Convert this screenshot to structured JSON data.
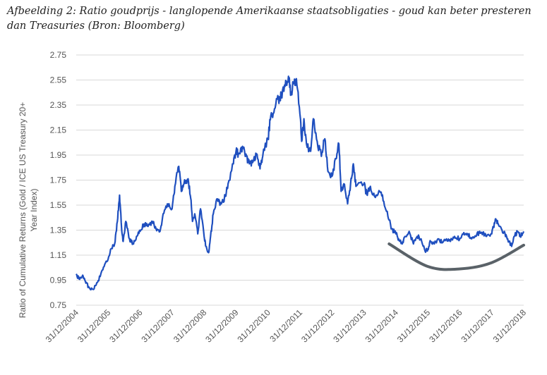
{
  "caption": {
    "line1": "Afbeelding 2: Ratio goudprijs - langlopende Amerikaanse staatsobligaties - goud kan beter presteren",
    "line2": "dan Treasuries (Bron: Bloomberg)"
  },
  "chart_data": {
    "type": "line",
    "title": "Afbeelding 2: Ratio goudprijs - langlopende Amerikaanse staatsobligaties - goud kan beter presteren dan Treasuries (Bron: Bloomberg)",
    "ylabel_line1": "Ratio of Cumulative Returns (Gold / ICE US Treasury 20+",
    "ylabel_line2": "Year Index)",
    "xlabel": "",
    "ylim": [
      0.75,
      2.75
    ],
    "xlim": [
      "31/12/2004",
      "31/12/2018"
    ],
    "yticks": [
      "2.75",
      "2.55",
      "2.35",
      "2.15",
      "1.95",
      "1.75",
      "1.55",
      "1.35",
      "1.15",
      "0.95",
      "0.75"
    ],
    "xticks": [
      "31/12/2004",
      "31/12/2005",
      "31/12/2006",
      "31/12/2007",
      "31/12/2008",
      "31/12/2009",
      "31/12/2010",
      "31/12/2011",
      "31/12/2012",
      "31/12/2013",
      "31/12/2014",
      "31/12/2015",
      "31/12/2016",
      "31/12/2017",
      "31/12/2018"
    ],
    "grid": true,
    "line_color": "#1f4fbf",
    "annotation_color": "#5a6268",
    "series": [
      {
        "points": [
          [
            "2004-12-31",
            1.0
          ],
          [
            "2005-02-01",
            0.96
          ],
          [
            "2005-03-15",
            0.99
          ],
          [
            "2005-04-15",
            0.94
          ],
          [
            "2005-05-20",
            0.9
          ],
          [
            "2005-07-01",
            0.88
          ],
          [
            "2005-08-15",
            0.91
          ],
          [
            "2005-10-01",
            0.98
          ],
          [
            "2005-11-15",
            1.06
          ],
          [
            "2005-12-31",
            1.12
          ],
          [
            "2006-02-01",
            1.2
          ],
          [
            "2006-03-15",
            1.24
          ],
          [
            "2006-04-15",
            1.42
          ],
          [
            "2006-05-10",
            1.63
          ],
          [
            "2006-06-01",
            1.38
          ],
          [
            "2006-06-20",
            1.26
          ],
          [
            "2006-07-20",
            1.42
          ],
          [
            "2006-09-01",
            1.28
          ],
          [
            "2006-10-10",
            1.24
          ],
          [
            "2006-11-20",
            1.3
          ],
          [
            "2006-12-31",
            1.34
          ],
          [
            "2007-02-15",
            1.4
          ],
          [
            "2007-04-01",
            1.38
          ],
          [
            "2007-05-20",
            1.42
          ],
          [
            "2007-07-01",
            1.36
          ],
          [
            "2007-08-15",
            1.34
          ],
          [
            "2007-09-20",
            1.48
          ],
          [
            "2007-11-07",
            1.56
          ],
          [
            "2007-12-31",
            1.52
          ],
          [
            "2008-02-01",
            1.7
          ],
          [
            "2008-03-17",
            1.86
          ],
          [
            "2008-04-15",
            1.66
          ],
          [
            "2008-05-15",
            1.72
          ],
          [
            "2008-07-01",
            1.76
          ],
          [
            "2008-08-01",
            1.6
          ],
          [
            "2008-08-20",
            1.42
          ],
          [
            "2008-09-15",
            1.48
          ],
          [
            "2008-10-20",
            1.32
          ],
          [
            "2008-11-20",
            1.52
          ],
          [
            "2008-12-31",
            1.3
          ],
          [
            "2009-01-20",
            1.22
          ],
          [
            "2009-02-20",
            1.17
          ],
          [
            "2009-03-15",
            1.3
          ],
          [
            "2009-04-15",
            1.48
          ],
          [
            "2009-06-01",
            1.6
          ],
          [
            "2009-07-15",
            1.56
          ],
          [
            "2009-09-01",
            1.62
          ],
          [
            "2009-10-01",
            1.72
          ],
          [
            "2009-12-01",
            1.88
          ],
          [
            "2009-12-31",
            1.98
          ],
          [
            "2010-02-01",
            1.96
          ],
          [
            "2010-03-15",
            2.02
          ],
          [
            "2010-05-01",
            1.94
          ],
          [
            "2010-06-01",
            1.88
          ],
          [
            "2010-07-15",
            1.9
          ],
          [
            "2010-08-20",
            1.96
          ],
          [
            "2010-10-01",
            1.84
          ],
          [
            "2010-11-01",
            1.94
          ],
          [
            "2010-12-31",
            2.08
          ],
          [
            "2011-02-01",
            2.26
          ],
          [
            "2011-03-15",
            2.32
          ],
          [
            "2011-04-30",
            2.4
          ],
          [
            "2011-06-01",
            2.44
          ],
          [
            "2011-07-15",
            2.5
          ],
          [
            "2011-08-22",
            2.58
          ],
          [
            "2011-09-20",
            2.44
          ],
          [
            "2011-10-20",
            2.52
          ],
          [
            "2011-11-20",
            2.56
          ],
          [
            "2011-12-31",
            2.28
          ],
          [
            "2012-01-20",
            2.06
          ],
          [
            "2012-02-15",
            2.24
          ],
          [
            "2012-03-15",
            2.04
          ],
          [
            "2012-05-01",
            1.98
          ],
          [
            "2012-06-01",
            2.24
          ],
          [
            "2012-07-15",
            2.06
          ],
          [
            "2012-09-01",
            1.94
          ],
          [
            "2012-10-10",
            2.08
          ],
          [
            "2012-11-15",
            1.82
          ],
          [
            "2012-12-31",
            1.78
          ],
          [
            "2013-02-15",
            1.92
          ],
          [
            "2013-03-20",
            2.04
          ],
          [
            "2013-04-15",
            1.66
          ],
          [
            "2013-05-15",
            1.72
          ],
          [
            "2013-06-28",
            1.56
          ],
          [
            "2013-08-01",
            1.72
          ],
          [
            "2013-09-01",
            1.88
          ],
          [
            "2013-10-01",
            1.7
          ],
          [
            "2013-12-31",
            1.72
          ],
          [
            "2014-02-01",
            1.64
          ],
          [
            "2014-03-15",
            1.7
          ],
          [
            "2014-05-01",
            1.62
          ],
          [
            "2014-07-01",
            1.66
          ],
          [
            "2014-08-15",
            1.58
          ],
          [
            "2014-10-01",
            1.46
          ],
          [
            "2014-11-15",
            1.36
          ],
          [
            "2014-12-31",
            1.32
          ],
          [
            "2015-02-01",
            1.28
          ],
          [
            "2015-03-15",
            1.24
          ],
          [
            "2015-04-15",
            1.3
          ],
          [
            "2015-06-01",
            1.34
          ],
          [
            "2015-07-20",
            1.24
          ],
          [
            "2015-09-01",
            1.3
          ],
          [
            "2015-10-15",
            1.28
          ],
          [
            "2015-12-01",
            1.18
          ],
          [
            "2015-12-31",
            1.2
          ],
          [
            "2016-02-01",
            1.26
          ],
          [
            "2016-03-15",
            1.24
          ],
          [
            "2016-05-01",
            1.28
          ],
          [
            "2016-06-15",
            1.25
          ],
          [
            "2016-08-01",
            1.28
          ],
          [
            "2016-09-15",
            1.26
          ],
          [
            "2016-11-01",
            1.3
          ],
          [
            "2016-12-31",
            1.28
          ],
          [
            "2017-02-15",
            1.33
          ],
          [
            "2017-04-01",
            1.32
          ],
          [
            "2017-05-15",
            1.28
          ],
          [
            "2017-07-01",
            1.3
          ],
          [
            "2017-08-15",
            1.34
          ],
          [
            "2017-09-20",
            1.33
          ],
          [
            "2017-11-01",
            1.3
          ],
          [
            "2017-12-31",
            1.32
          ],
          [
            "2018-01-20",
            1.38
          ],
          [
            "2018-02-15",
            1.44
          ],
          [
            "2018-03-15",
            1.4
          ],
          [
            "2018-04-20",
            1.36
          ],
          [
            "2018-06-01",
            1.32
          ],
          [
            "2018-07-01",
            1.28
          ],
          [
            "2018-08-15",
            1.22
          ],
          [
            "2018-09-15",
            1.3
          ],
          [
            "2018-10-20",
            1.34
          ],
          [
            "2018-11-20",
            1.3
          ],
          [
            "2018-12-31",
            1.34
          ]
        ]
      }
    ],
    "annotations": [
      {
        "type": "arc",
        "points": [
          [
            "2014-10-15",
            1.24
          ],
          [
            "2015-12-31",
            1.06
          ],
          [
            "2016-12-31",
            1.04
          ],
          [
            "2017-12-31",
            1.09
          ],
          [
            "2018-12-31",
            1.23
          ]
        ]
      }
    ]
  }
}
